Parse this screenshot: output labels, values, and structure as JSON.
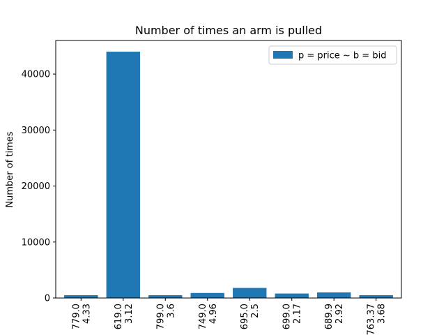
{
  "chart_data": {
    "type": "bar",
    "title": "Number of times an arm is pulled",
    "xlabel": "",
    "ylabel": "Number of times",
    "categories": [
      [
        "779.0",
        "4.33"
      ],
      [
        "619.0",
        "3.12"
      ],
      [
        "799.0",
        "3.6"
      ],
      [
        "749.0",
        "4.96"
      ],
      [
        "695.0",
        "2.5"
      ],
      [
        "699.0",
        "2.17"
      ],
      [
        "689.9",
        "2.92"
      ],
      [
        "763.37",
        "3.68"
      ]
    ],
    "series": [
      {
        "name": "p = price ~ b = bid",
        "values": [
          500,
          44000,
          500,
          900,
          1800,
          800,
          1000,
          500
        ],
        "color": "#1f77b4"
      }
    ],
    "ylim": [
      0,
      46000
    ],
    "yticks": [
      0,
      10000,
      20000,
      30000,
      40000
    ],
    "grid": false,
    "legend_position": "top-right"
  }
}
